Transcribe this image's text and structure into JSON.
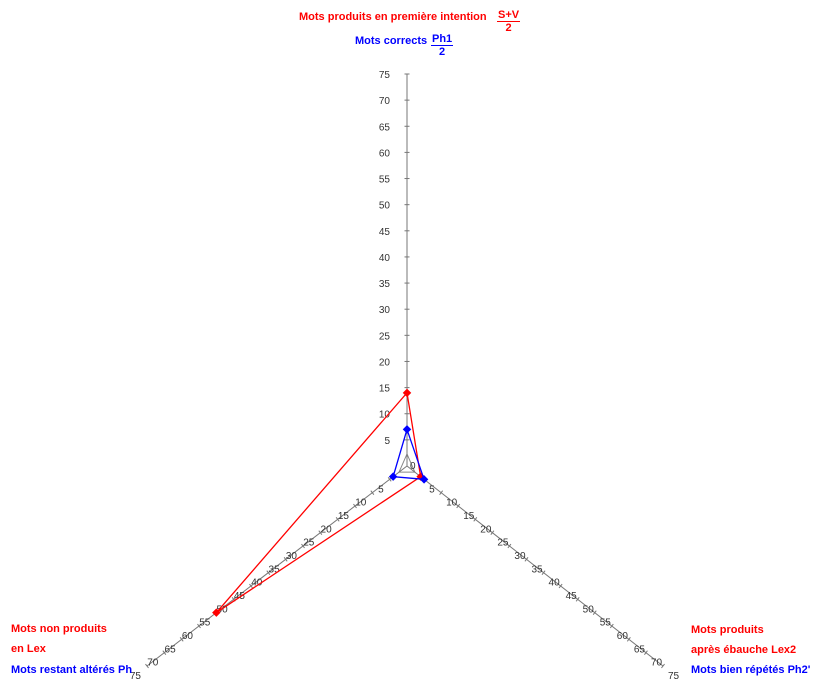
{
  "colors": {
    "series1": "#ff0000",
    "series2": "#0000ff",
    "axis": "#777777"
  },
  "top_labels": {
    "red_text": "Mots produits en première intention",
    "red_frac_num": "S+V",
    "red_frac_den": "2",
    "blue_text": "Mots corrects",
    "blue_frac_num": "Ph1",
    "blue_frac_den": "2"
  },
  "left_labels": {
    "red_line1": "Mots non produits",
    "red_line2": "en Lex",
    "blue_line1": "Mots restant altérés Ph"
  },
  "right_labels": {
    "red_line1": "Mots produits",
    "red_line2": "après ébauche Lex2",
    "blue_line1": "Mots bien répétés Ph2'"
  },
  "chart_data": {
    "type": "radar",
    "axes": [
      "top",
      "bottom-right",
      "bottom-left"
    ],
    "range": [
      0,
      75
    ],
    "tick_step": 5,
    "ticks": [
      "0",
      "5",
      "10",
      "15",
      "20",
      "25",
      "30",
      "35",
      "40",
      "45",
      "50",
      "55",
      "60",
      "65",
      "70",
      "75"
    ],
    "series": [
      {
        "color": "red",
        "values": [
          14,
          4,
          55
        ]
      },
      {
        "color": "blue",
        "values": [
          7,
          5,
          4
        ]
      }
    ]
  }
}
